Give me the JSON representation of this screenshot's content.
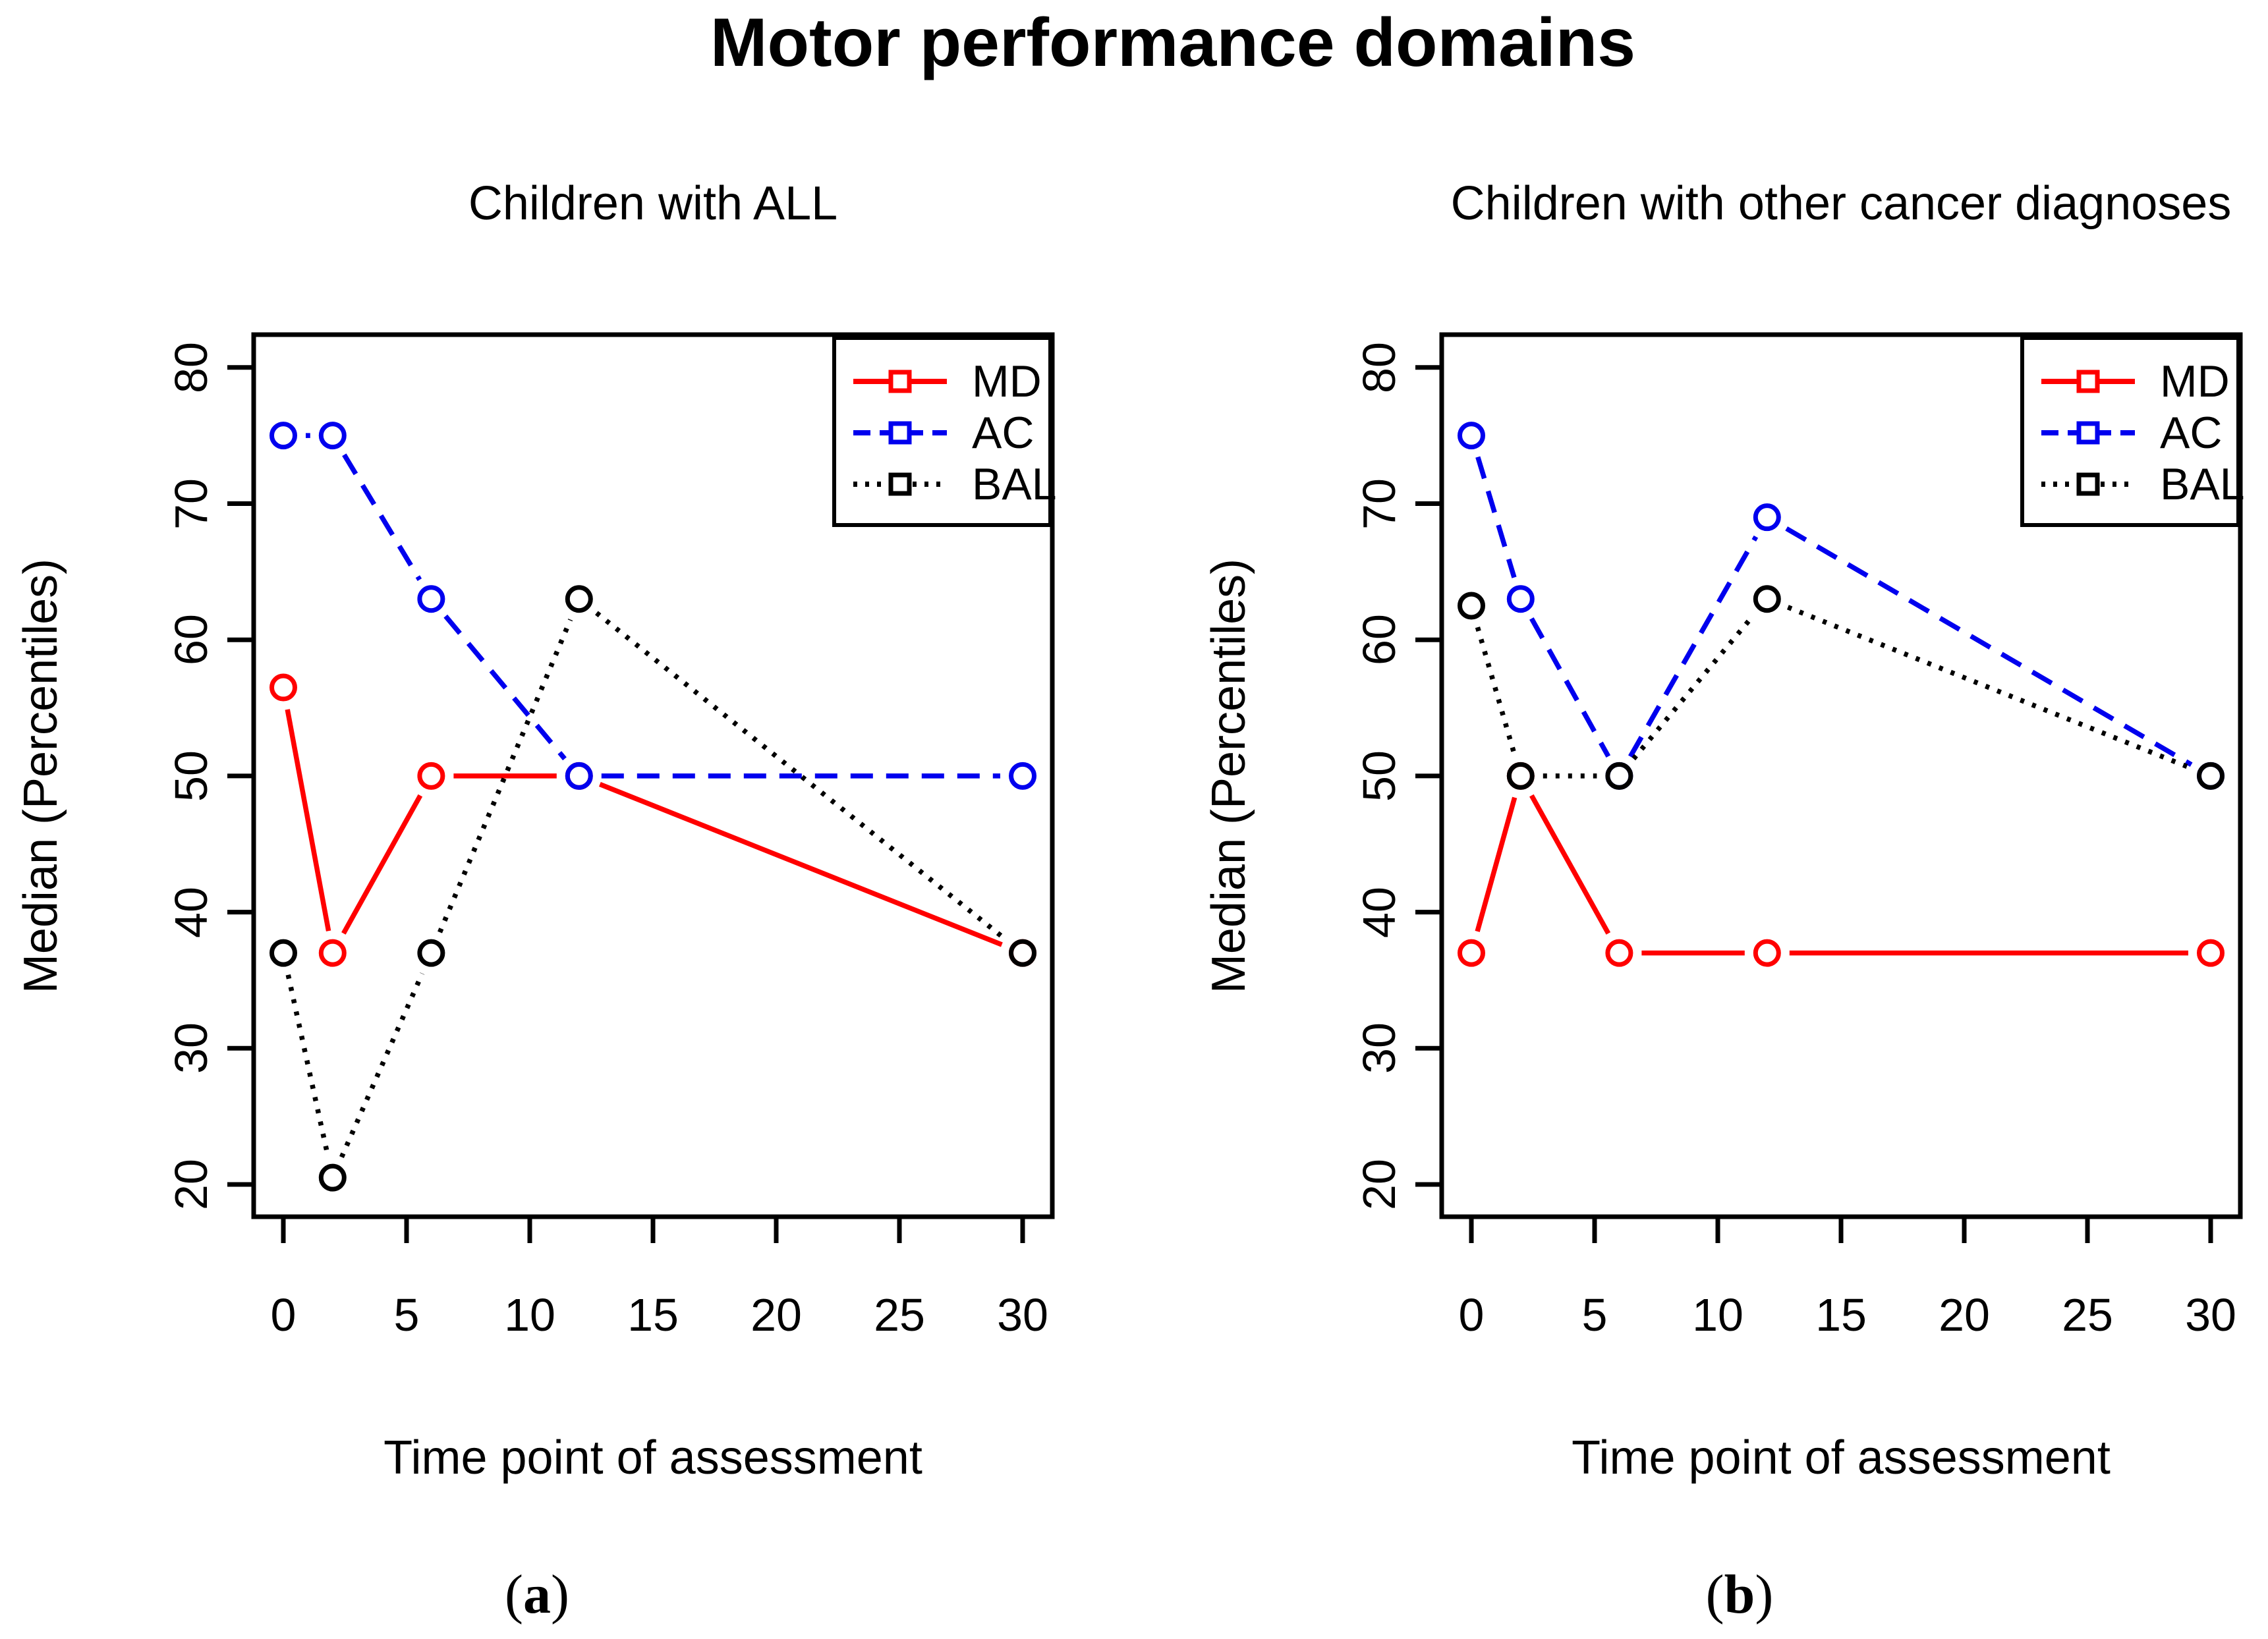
{
  "title": "Motor performance domains",
  "colors": {
    "md": "#FF0000",
    "ac": "#0000EE",
    "bal": "#000000"
  },
  "legend": [
    {
      "id": "md",
      "label": "MD",
      "linestyle": "solid"
    },
    {
      "id": "ac",
      "label": "AC",
      "linestyle": "dashed"
    },
    {
      "id": "bal",
      "label": "BAL",
      "linestyle": "dotted"
    }
  ],
  "panel_letters": [
    {
      "open": "(",
      "letter": "a",
      "close": ")"
    },
    {
      "open": "(",
      "letter": "b",
      "close": ")"
    }
  ],
  "chart_data": [
    {
      "type": "line",
      "title": "Children with ALL",
      "xlabel": "Time point of assessment",
      "ylabel": "Median (Percentiles)",
      "x": [
        0,
        2,
        6,
        12,
        30
      ],
      "x_ticks": [
        "0",
        "5",
        "10",
        "15",
        "20",
        "25",
        "30"
      ],
      "y_ticks": [
        "20",
        "30",
        "40",
        "50",
        "60",
        "70",
        "80"
      ],
      "xlim": [
        0,
        30
      ],
      "ylim": [
        20,
        80
      ],
      "grid": false,
      "legend_position": "top-right",
      "series": [
        {
          "name": "MD",
          "color": "#FF0000",
          "linestyle": "solid",
          "marker": "open-circle",
          "values": [
            56.5,
            37,
            50,
            50,
            37
          ]
        },
        {
          "name": "AC",
          "color": "#0000EE",
          "linestyle": "dashed",
          "marker": "open-circle",
          "values": [
            75,
            75,
            63,
            50,
            50
          ]
        },
        {
          "name": "BAL",
          "color": "#000000",
          "linestyle": "dotted",
          "marker": "open-circle",
          "values": [
            37,
            20.5,
            37,
            63,
            37
          ]
        }
      ]
    },
    {
      "type": "line",
      "title": "Children with other cancer diagnoses",
      "xlabel": "Time point of assessment",
      "ylabel": "Median (Percentiles)",
      "x": [
        0,
        2,
        6,
        12,
        30
      ],
      "x_ticks": [
        "0",
        "5",
        "10",
        "15",
        "20",
        "25",
        "30"
      ],
      "y_ticks": [
        "20",
        "30",
        "40",
        "50",
        "60",
        "70",
        "80"
      ],
      "xlim": [
        0,
        30
      ],
      "ylim": [
        20,
        80
      ],
      "grid": false,
      "legend_position": "top-right",
      "series": [
        {
          "name": "MD",
          "color": "#FF0000",
          "linestyle": "solid",
          "marker": "open-circle",
          "values": [
            37,
            50,
            37,
            37,
            37
          ]
        },
        {
          "name": "AC",
          "color": "#0000EE",
          "linestyle": "dashed",
          "marker": "open-circle",
          "values": [
            75,
            63,
            50,
            69,
            50
          ]
        },
        {
          "name": "BAL",
          "color": "#000000",
          "linestyle": "dotted",
          "marker": "open-circle",
          "values": [
            62.5,
            50,
            50,
            63,
            50
          ]
        }
      ]
    }
  ]
}
